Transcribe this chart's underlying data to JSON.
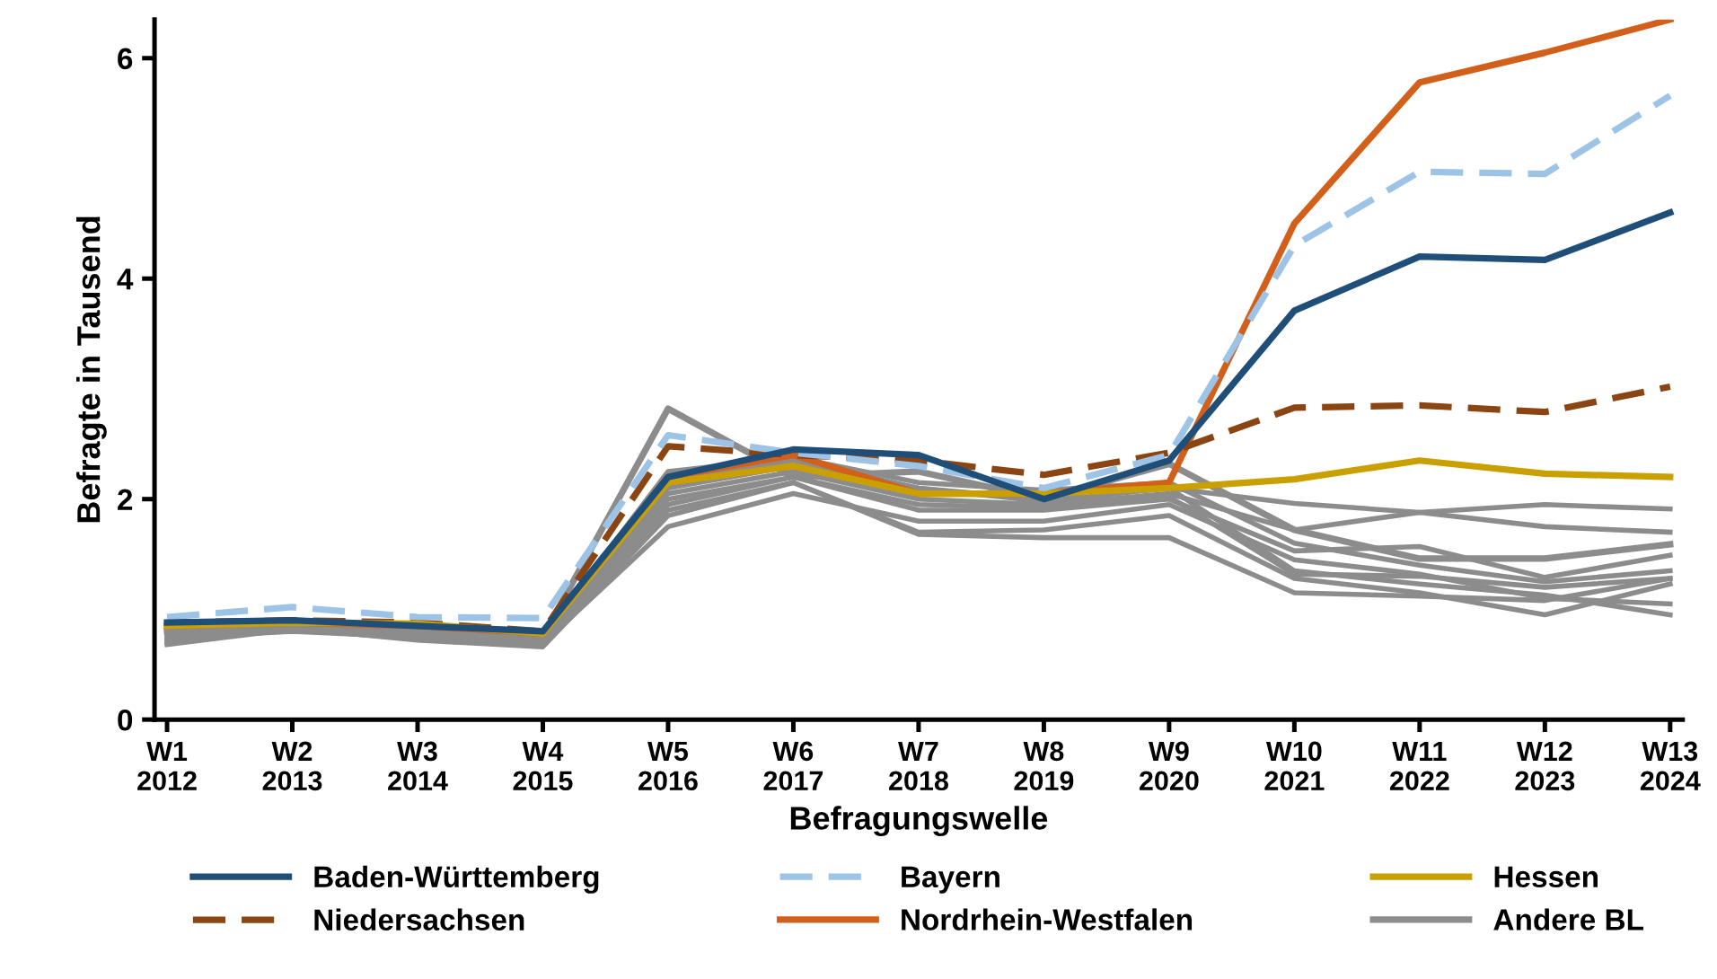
{
  "chart_data": {
    "type": "line",
    "xlabel": "Befragungswelle",
    "ylabel": "Befragte in Tausend",
    "categories": [
      "W1\n2012",
      "W2\n2013",
      "W3\n2014",
      "W4\n2015",
      "W5\n2016",
      "W6\n2017",
      "W7\n2018",
      "W8\n2019",
      "W9\n2020",
      "W10\n2021",
      "W11\n2022",
      "W12\n2023",
      "W13\n2024"
    ],
    "ylim": [
      0,
      6.35
    ],
    "yticks": [
      0,
      2,
      4,
      6
    ],
    "grid": false,
    "legend": "bottom",
    "marker": "none",
    "series": [
      {
        "name": "Baden-Württemberg",
        "color": "#1f4e79",
        "values": [
          0.88,
          0.9,
          0.85,
          0.8,
          2.2,
          2.45,
          2.4,
          2.0,
          2.35,
          3.71,
          4.2,
          4.17,
          4.6
        ]
      },
      {
        "name": "Bayern",
        "color": "#9dc3e6",
        "line_style": "dashed",
        "values": [
          0.93,
          1.02,
          0.93,
          0.92,
          2.58,
          2.42,
          2.3,
          2.1,
          2.4,
          4.3,
          4.97,
          4.95,
          5.66
        ]
      },
      {
        "name": "Hessen",
        "color": "#c9a000",
        "values": [
          0.85,
          0.88,
          0.87,
          0.78,
          2.15,
          2.3,
          2.05,
          2.05,
          2.1,
          2.18,
          2.35,
          2.23,
          2.2
        ]
      },
      {
        "name": "Niedersachsen",
        "color": "#8b4513",
        "line_style": "dashed",
        "values": [
          0.88,
          0.9,
          0.88,
          0.8,
          2.48,
          2.4,
          2.35,
          2.22,
          2.42,
          2.83,
          2.85,
          2.79,
          3.02
        ]
      },
      {
        "name": "Nordrhein-Westfalen",
        "color": "#d2601a",
        "values": [
          0.85,
          0.88,
          0.85,
          0.78,
          2.2,
          2.4,
          2.05,
          2.05,
          2.15,
          4.5,
          5.78,
          6.05,
          6.35
        ]
      },
      {
        "name": "Andere BL",
        "color": "#8c8c8c",
        "values": [
          0.8,
          0.88,
          0.8,
          0.75,
          2.82,
          2.2,
          2.25,
          2.0,
          2.32,
          1.72,
          1.46,
          1.46,
          1.59
        ]
      },
      {
        "color": "#8c8c8c",
        "values": [
          0.75,
          0.85,
          0.78,
          0.72,
          2.1,
          2.3,
          2.1,
          2.0,
          2.1,
          1.96,
          1.88,
          1.95,
          1.91
        ]
      },
      {
        "color": "#8c8c8c",
        "values": [
          0.78,
          0.85,
          0.8,
          0.73,
          2.05,
          2.25,
          2.0,
          1.95,
          2.05,
          1.72,
          1.88,
          1.75,
          1.7
        ]
      },
      {
        "color": "#8c8c8c",
        "values": [
          0.7,
          0.83,
          0.75,
          0.68,
          1.95,
          2.2,
          1.9,
          1.9,
          2.0,
          1.53,
          1.57,
          1.29,
          1.49
        ]
      },
      {
        "color": "#8c8c8c",
        "values": [
          0.72,
          0.83,
          0.72,
          0.66,
          1.85,
          2.15,
          1.68,
          1.65,
          1.65,
          1.15,
          1.12,
          1.08,
          1.28
        ]
      },
      {
        "color": "#8c8c8c",
        "values": [
          0.68,
          0.82,
          0.73,
          0.67,
          1.9,
          2.15,
          1.7,
          1.72,
          1.85,
          1.28,
          1.15,
          0.95,
          1.23
        ]
      },
      {
        "color": "#8c8c8c",
        "values": [
          0.74,
          0.8,
          0.75,
          0.69,
          1.75,
          2.05,
          1.8,
          1.8,
          1.95,
          1.45,
          1.32,
          1.1,
          1.05
        ]
      },
      {
        "color": "#8c8c8c",
        "values": [
          0.83,
          0.9,
          0.83,
          0.76,
          2.25,
          2.38,
          2.15,
          2.08,
          2.15,
          1.6,
          1.4,
          1.25,
          1.35
        ]
      },
      {
        "color": "#8c8c8c",
        "values": [
          0.85,
          0.88,
          0.82,
          0.74,
          2.15,
          2.35,
          2.1,
          1.98,
          2.1,
          1.35,
          1.23,
          1.13,
          0.95
        ]
      },
      {
        "color": "#8c8c8c",
        "values": [
          0.78,
          0.86,
          0.8,
          0.72,
          2.0,
          2.2,
          1.95,
          1.92,
          2.02,
          1.32,
          1.3,
          1.2,
          1.28
        ]
      }
    ]
  }
}
